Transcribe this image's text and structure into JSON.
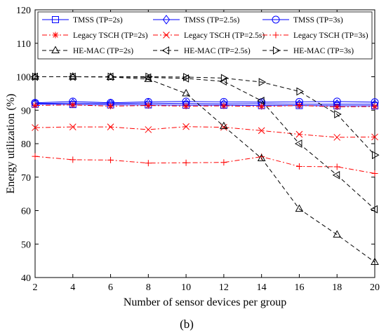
{
  "chart_data": {
    "type": "line",
    "xlabel": "Number of sensor devices per group",
    "ylabel": "Energy utilization (%)",
    "caption": "(b)",
    "xlim": [
      2,
      20
    ],
    "ylim": [
      40,
      120
    ],
    "xticks": [
      2,
      4,
      6,
      8,
      10,
      12,
      14,
      16,
      18,
      20
    ],
    "yticks": [
      40,
      50,
      60,
      70,
      80,
      90,
      100,
      110,
      120
    ],
    "grid": false,
    "legend_position": "top",
    "x": [
      2,
      4,
      6,
      8,
      10,
      12,
      14,
      16,
      18,
      20
    ],
    "series": [
      {
        "name": "TMSS (TP=2s)",
        "color": "#0000ff",
        "dash": "solid",
        "marker": "square",
        "values": [
          91.8,
          91.7,
          91.6,
          91.6,
          91.5,
          91.5,
          91.4,
          91.4,
          91.3,
          91.3
        ]
      },
      {
        "name": "TMSS (TP=2.5s)",
        "color": "#0000ff",
        "dash": "solid",
        "marker": "diamond",
        "values": [
          92.0,
          92.1,
          92.0,
          92.1,
          92.0,
          91.9,
          91.9,
          91.8,
          91.8,
          91.8
        ]
      },
      {
        "name": "TMSS (TP=3s)",
        "color": "#0000ff",
        "dash": "solid",
        "marker": "circle",
        "values": [
          92.2,
          92.6,
          92.2,
          92.5,
          92.6,
          92.5,
          92.4,
          92.5,
          92.6,
          92.4
        ]
      },
      {
        "name": "Legacy TSCH (TP=2s)",
        "color": "#ff0000",
        "dash": "dashdot",
        "marker": "star",
        "values": [
          91.4,
          91.6,
          91.2,
          91.4,
          91.2,
          91.3,
          91.1,
          91.4,
          91.0,
          91.1
        ]
      },
      {
        "name": "Legacy TSCH (TP=2.5s)",
        "color": "#ff0000",
        "dash": "dashdot",
        "marker": "x",
        "values": [
          84.8,
          85.0,
          85.0,
          84.2,
          85.1,
          84.9,
          83.9,
          82.8,
          81.9,
          82.0
        ]
      },
      {
        "name": "Legacy TSCH (TP=3s)",
        "color": "#ff0000",
        "dash": "dashdot",
        "marker": "plus",
        "values": [
          76.2,
          75.2,
          75.1,
          74.2,
          74.3,
          74.4,
          76.1,
          73.2,
          73.1,
          71.1
        ]
      },
      {
        "name": "HE-MAC (TP=2s)",
        "color": "#000000",
        "dash": "dashed",
        "marker": "triangle-up",
        "values": [
          100.0,
          100.0,
          99.9,
          99.3,
          95.0,
          85.2,
          75.6,
          60.5,
          52.8,
          44.6
        ]
      },
      {
        "name": "HE-MAC (TP=2.5s)",
        "color": "#000000",
        "dash": "dashed",
        "marker": "triangle-left",
        "values": [
          100.0,
          100.0,
          100.0,
          99.8,
          99.5,
          98.6,
          92.8,
          80.0,
          70.6,
          60.4
        ]
      },
      {
        "name": "HE-MAC (TP=3s)",
        "color": "#000000",
        "dash": "dashed",
        "marker": "triangle-right",
        "values": [
          100.0,
          100.0,
          100.0,
          100.0,
          99.9,
          99.6,
          98.4,
          95.6,
          88.8,
          76.6
        ]
      }
    ]
  }
}
